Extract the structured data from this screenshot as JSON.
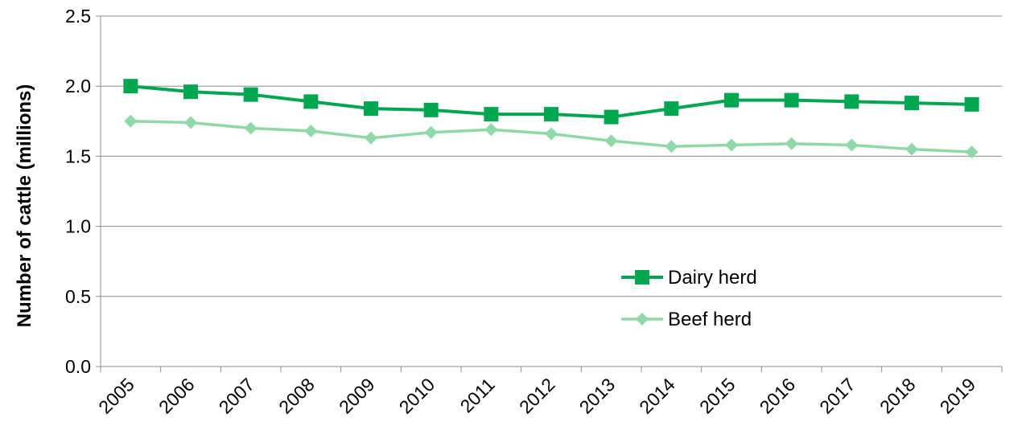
{
  "chart_data": {
    "type": "line",
    "title": "",
    "xlabel": "",
    "ylabel": "Number of cattle (millions)",
    "x": [
      "2005",
      "2006",
      "2007",
      "2008",
      "2009",
      "2010",
      "2011",
      "2012",
      "2013",
      "2014",
      "2015",
      "2016",
      "2017",
      "2018",
      "2019"
    ],
    "ylim": [
      0,
      2.5
    ],
    "yticks": [
      "0.0",
      "0.5",
      "1.0",
      "1.5",
      "2.0",
      "2.5"
    ],
    "grid": true,
    "legend_position": "lower-right",
    "series": [
      {
        "name": "Dairy herd",
        "color": "#00a650",
        "marker": "square",
        "values": [
          2.0,
          1.96,
          1.94,
          1.89,
          1.84,
          1.83,
          1.8,
          1.8,
          1.78,
          1.84,
          1.9,
          1.9,
          1.89,
          1.88,
          1.87
        ]
      },
      {
        "name": "Beef herd",
        "color": "#8fd9a8",
        "marker": "diamond",
        "values": [
          1.75,
          1.74,
          1.7,
          1.68,
          1.63,
          1.67,
          1.69,
          1.66,
          1.61,
          1.57,
          1.58,
          1.59,
          1.58,
          1.55,
          1.53
        ]
      }
    ]
  }
}
